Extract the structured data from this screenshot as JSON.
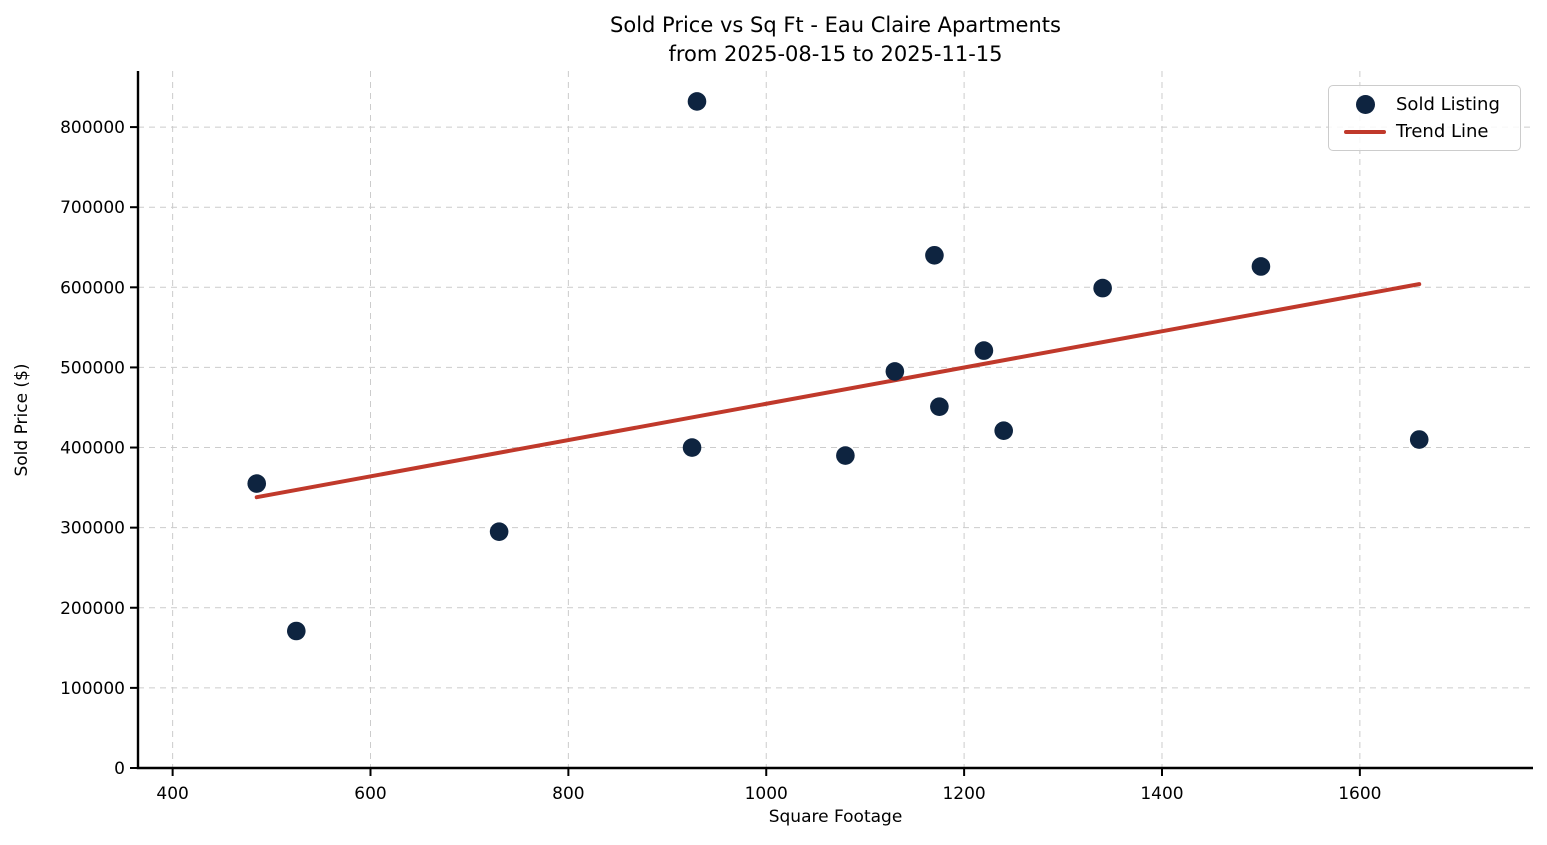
{
  "chart_data": {
    "type": "scatter",
    "title": "Sold Price vs Sq Ft - Eau Claire Apartments",
    "subtitle": "from 2025-08-15 to 2025-11-15",
    "xlabel": "Square Footage",
    "ylabel": "Sold Price ($)",
    "xlim": [
      365,
      1775
    ],
    "ylim": [
      0,
      870000
    ],
    "x_ticks": [
      400,
      600,
      800,
      1000,
      1200,
      1400,
      1600
    ],
    "y_ticks": [
      0,
      100000,
      200000,
      300000,
      400000,
      500000,
      600000,
      700000,
      800000
    ],
    "grid": true,
    "grid_style": "dashed",
    "legend_position": "upper right",
    "series": [
      {
        "name": "Sold Listing",
        "type": "scatter",
        "color": "#0e2440",
        "points": [
          {
            "sqft": 930,
            "price": 832000
          },
          {
            "sqft": 1170,
            "price": 640000
          },
          {
            "sqft": 1340,
            "price": 599000
          },
          {
            "sqft": 1500,
            "price": 626000
          },
          {
            "sqft": 1130,
            "price": 495000
          },
          {
            "sqft": 1220,
            "price": 521000
          },
          {
            "sqft": 1175,
            "price": 451000
          },
          {
            "sqft": 1240,
            "price": 421000
          },
          {
            "sqft": 925,
            "price": 400000
          },
          {
            "sqft": 1080,
            "price": 390000
          },
          {
            "sqft": 1660,
            "price": 410000
          },
          {
            "sqft": 485,
            "price": 355000
          },
          {
            "sqft": 730,
            "price": 295000
          },
          {
            "sqft": 525,
            "price": 171000
          }
        ]
      },
      {
        "name": "Trend Line",
        "type": "line",
        "color": "#c0392b",
        "x": [
          485,
          1660
        ],
        "y": [
          338000,
          604000
        ]
      }
    ]
  },
  "legend": {
    "items": [
      {
        "label": "Sold Listing"
      },
      {
        "label": "Trend Line"
      }
    ]
  },
  "colors": {
    "marker": "#0e2440",
    "trend": "#c0392b",
    "grid": "#cccccc",
    "axis": "#000000",
    "background": "#ffffff"
  }
}
